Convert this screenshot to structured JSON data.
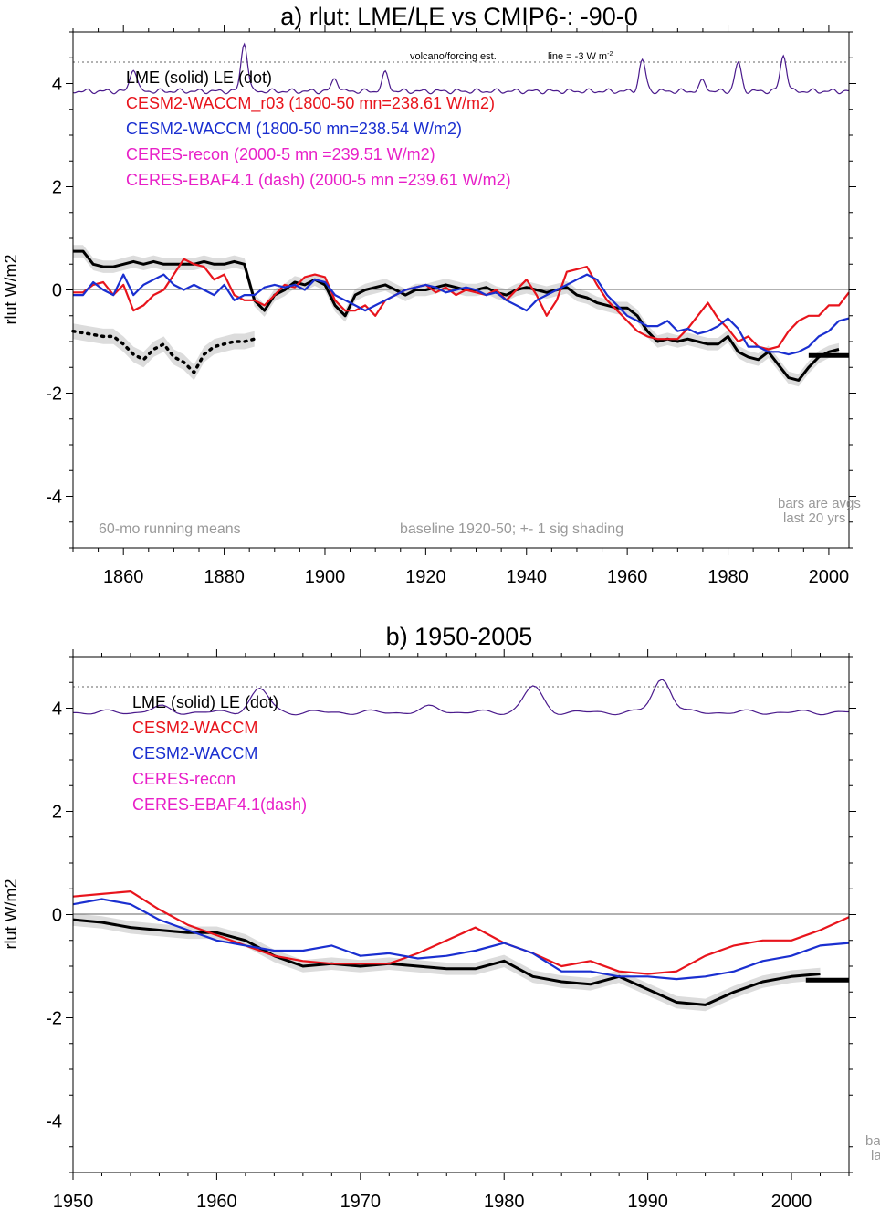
{
  "chart_data": [
    {
      "type": "line",
      "title": "a) rlut: LME/LE vs CMIP6-: -90-0",
      "ylabel": "rlut W/m2",
      "xlim": [
        1850,
        2004
      ],
      "ylim": [
        -5,
        5
      ],
      "xticks": [
        1860,
        1880,
        1900,
        1920,
        1940,
        1960,
        1980,
        2000
      ],
      "yticks": [
        4,
        2,
        0,
        -2,
        -4
      ],
      "legend": [
        {
          "text": "LME (solid)   LE (dot)",
          "color": "#000000"
        },
        {
          "text": "CESM2-WACCM_r03 (1800-50 mn=238.61 W/m2)",
          "color": "#e8141c"
        },
        {
          "text": "CESM2-WACCM (1800-50 mn=238.54 W/m2)",
          "color": "#1a2fd0"
        },
        {
          "text": "CERES-recon (2000-5 mn =239.51 W/m2)",
          "color": "#e820c8"
        },
        {
          "text": "CERES-EBAF4.1 (dash) (2000-5 mn =239.61 W/m2)",
          "color": "#e820c8"
        }
      ],
      "annotations": {
        "volcano": "volcano/forcing est.",
        "line_ref": "line = -3 W m",
        "line_ref_sup": "-2",
        "running": "60-mo running means",
        "baseline": "baseline 1920-50; +- 1 sig shading",
        "bars1": "bars are avgs",
        "bars2": "last 20 yrs"
      },
      "series": [
        {
          "name": "LME (solid)",
          "color": "#000000",
          "x": [
            1850,
            1852,
            1854,
            1856,
            1858,
            1860,
            1862,
            1864,
            1866,
            1868,
            1870,
            1872,
            1874,
            1876,
            1878,
            1880,
            1882,
            1884,
            1886,
            1888,
            1890,
            1892,
            1894,
            1896,
            1898,
            1900,
            1902,
            1904,
            1906,
            1908,
            1910,
            1912,
            1914,
            1916,
            1918,
            1920,
            1922,
            1924,
            1926,
            1928,
            1930,
            1932,
            1934,
            1936,
            1938,
            1940,
            1942,
            1944,
            1946,
            1948,
            1950,
            1952,
            1954,
            1956,
            1958,
            1960,
            1962,
            1964,
            1966,
            1968,
            1970,
            1972,
            1974,
            1976,
            1978,
            1980,
            1982,
            1984,
            1986,
            1988,
            1990,
            1992,
            1994,
            1996,
            1998,
            2000,
            2002
          ],
          "y": [
            0.75,
            0.75,
            0.5,
            0.45,
            0.45,
            0.5,
            0.55,
            0.5,
            0.55,
            0.5,
            0.5,
            0.5,
            0.5,
            0.55,
            0.5,
            0.5,
            0.55,
            0.5,
            -0.2,
            -0.4,
            -0.1,
            0.0,
            0.15,
            0.1,
            0.2,
            0.1,
            -0.3,
            -0.5,
            -0.1,
            0.0,
            0.05,
            0.1,
            0.0,
            -0.1,
            0.0,
            0.0,
            0.05,
            0.1,
            0.05,
            0.0,
            0.0,
            0.05,
            -0.05,
            -0.1,
            0.0,
            0.05,
            0.0,
            -0.05,
            0.0,
            0.05,
            -0.1,
            -0.15,
            -0.25,
            -0.3,
            -0.35,
            -0.35,
            -0.5,
            -0.8,
            -1.0,
            -0.95,
            -1.0,
            -0.95,
            -1.0,
            -1.05,
            -1.05,
            -0.9,
            -1.2,
            -1.3,
            -1.35,
            -1.2,
            -1.45,
            -1.7,
            -1.75,
            -1.5,
            -1.3,
            -1.2,
            -1.15
          ]
        },
        {
          "name": "LE (dot)",
          "color": "#000000",
          "dash": "dot",
          "x": [
            1850,
            1853,
            1856,
            1858,
            1860,
            1862,
            1864,
            1866,
            1868,
            1870,
            1872,
            1874,
            1876,
            1878,
            1880,
            1882,
            1884,
            1886
          ],
          "y": [
            -0.8,
            -0.85,
            -0.9,
            -0.9,
            -1.05,
            -1.25,
            -1.35,
            -1.15,
            -1.05,
            -1.3,
            -1.4,
            -1.6,
            -1.25,
            -1.1,
            -1.05,
            -1.0,
            -1.0,
            -0.95
          ]
        },
        {
          "name": "CESM2-WACCM_r03",
          "color": "#e8141c",
          "x": [
            1850,
            1852,
            1854,
            1856,
            1858,
            1860,
            1862,
            1864,
            1866,
            1868,
            1870,
            1872,
            1874,
            1876,
            1878,
            1880,
            1882,
            1884,
            1886,
            1888,
            1890,
            1892,
            1894,
            1896,
            1898,
            1900,
            1902,
            1904,
            1906,
            1908,
            1910,
            1912,
            1914,
            1916,
            1918,
            1920,
            1922,
            1924,
            1926,
            1928,
            1930,
            1932,
            1934,
            1936,
            1938,
            1940,
            1942,
            1944,
            1946,
            1948,
            1950,
            1952,
            1954,
            1956,
            1958,
            1960,
            1962,
            1964,
            1966,
            1968,
            1970,
            1972,
            1974,
            1976,
            1978,
            1980,
            1982,
            1984,
            1986,
            1988,
            1990,
            1992,
            1994,
            1996,
            1998,
            2000,
            2002,
            2004
          ],
          "y": [
            -0.05,
            -0.05,
            0.1,
            0.15,
            -0.1,
            0.1,
            -0.4,
            -0.3,
            -0.1,
            0.0,
            0.3,
            0.6,
            0.5,
            0.45,
            0.2,
            0.3,
            -0.1,
            -0.2,
            -0.2,
            -0.3,
            -0.1,
            0.1,
            0.05,
            0.25,
            0.3,
            0.25,
            -0.2,
            -0.4,
            -0.4,
            -0.3,
            -0.5,
            -0.2,
            -0.1,
            0.0,
            0.05,
            0.1,
            -0.05,
            0.05,
            -0.1,
            0.0,
            -0.05,
            -0.1,
            0.0,
            -0.2,
            0.0,
            0.2,
            -0.1,
            -0.5,
            -0.2,
            0.35,
            0.4,
            0.45,
            0.1,
            -0.2,
            -0.4,
            -0.6,
            -0.8,
            -0.9,
            -0.95,
            -0.95,
            -0.95,
            -0.75,
            -0.5,
            -0.25,
            -0.55,
            -0.75,
            -1.0,
            -0.9,
            -1.1,
            -1.15,
            -1.1,
            -0.8,
            -0.6,
            -0.5,
            -0.5,
            -0.3,
            -0.3,
            -0.05
          ]
        },
        {
          "name": "CESM2-WACCM",
          "color": "#1a2fd0",
          "x": [
            1850,
            1852,
            1854,
            1856,
            1858,
            1860,
            1862,
            1864,
            1866,
            1868,
            1870,
            1872,
            1874,
            1876,
            1878,
            1880,
            1882,
            1884,
            1886,
            1888,
            1890,
            1892,
            1894,
            1896,
            1898,
            1900,
            1902,
            1904,
            1906,
            1908,
            1910,
            1912,
            1914,
            1916,
            1918,
            1920,
            1922,
            1924,
            1926,
            1928,
            1930,
            1932,
            1934,
            1936,
            1938,
            1940,
            1942,
            1944,
            1946,
            1948,
            1950,
            1952,
            1954,
            1956,
            1958,
            1960,
            1962,
            1964,
            1966,
            1968,
            1970,
            1972,
            1974,
            1976,
            1978,
            1980,
            1982,
            1984,
            1986,
            1988,
            1990,
            1992,
            1994,
            1996,
            1998,
            2000,
            2002,
            2004
          ],
          "y": [
            -0.1,
            -0.1,
            0.15,
            0.0,
            -0.1,
            0.3,
            -0.1,
            0.1,
            0.2,
            0.3,
            0.1,
            0.0,
            0.1,
            0.0,
            -0.1,
            0.1,
            -0.2,
            -0.1,
            -0.1,
            0.05,
            0.1,
            0.05,
            0.1,
            0.0,
            0.2,
            0.15,
            -0.1,
            -0.2,
            -0.3,
            -0.4,
            -0.3,
            -0.2,
            -0.1,
            0.0,
            0.05,
            0.1,
            0.05,
            -0.05,
            0.0,
            0.05,
            0.0,
            -0.1,
            -0.05,
            -0.2,
            -0.3,
            -0.4,
            -0.2,
            -0.1,
            0.0,
            0.1,
            0.2,
            0.3,
            0.2,
            -0.1,
            -0.3,
            -0.5,
            -0.6,
            -0.7,
            -0.7,
            -0.6,
            -0.8,
            -0.75,
            -0.85,
            -0.8,
            -0.7,
            -0.55,
            -0.75,
            -1.1,
            -1.1,
            -1.2,
            -1.2,
            -1.25,
            -1.2,
            -1.1,
            -0.9,
            -0.8,
            -0.6,
            -0.55
          ]
        }
      ],
      "bar": {
        "x": [
          1996,
          2004
        ],
        "y": -1.27
      }
    },
    {
      "type": "line",
      "title": "b) 1950-2005",
      "ylabel": "rlut W/m2",
      "xlim": [
        1950,
        2004
      ],
      "ylim": [
        -5,
        5
      ],
      "xticks": [
        1950,
        1960,
        1970,
        1980,
        1990,
        2000
      ],
      "yticks": [
        4,
        2,
        0,
        -2,
        -4
      ],
      "legend": [
        {
          "text": "LME (solid)     LE (dot)",
          "color": "#000000"
        },
        {
          "text": "CESM2-WACCM",
          "color": "#e8141c"
        },
        {
          "text": "CESM2-WACCM",
          "color": "#1a2fd0"
        },
        {
          "text": "CERES-recon",
          "color": "#e820c8"
        },
        {
          "text": "CERES-EBAF4.1(dash)",
          "color": "#e820c8"
        }
      ],
      "annotations": {
        "bars1": "ba",
        "bars2": "la"
      },
      "series": [
        {
          "name": "LME (solid)",
          "color": "#000000",
          "x": [
            1950,
            1952,
            1954,
            1956,
            1958,
            1960,
            1962,
            1964,
            1966,
            1968,
            1970,
            1972,
            1974,
            1976,
            1978,
            1980,
            1982,
            1984,
            1986,
            1988,
            1990,
            1992,
            1994,
            1996,
            1998,
            2000,
            2002
          ],
          "y": [
            -0.1,
            -0.15,
            -0.25,
            -0.3,
            -0.35,
            -0.35,
            -0.5,
            -0.8,
            -1.0,
            -0.95,
            -1.0,
            -0.95,
            -1.0,
            -1.05,
            -1.05,
            -0.9,
            -1.2,
            -1.3,
            -1.35,
            -1.2,
            -1.45,
            -1.7,
            -1.75,
            -1.5,
            -1.3,
            -1.2,
            -1.15
          ]
        },
        {
          "name": "CESM2-WACCM red",
          "color": "#e8141c",
          "x": [
            1950,
            1952,
            1954,
            1956,
            1958,
            1960,
            1962,
            1964,
            1966,
            1968,
            1970,
            1972,
            1974,
            1976,
            1978,
            1980,
            1982,
            1984,
            1986,
            1988,
            1990,
            1992,
            1994,
            1996,
            1998,
            2000,
            2002,
            2004
          ],
          "y": [
            0.35,
            0.4,
            0.45,
            0.1,
            -0.2,
            -0.4,
            -0.6,
            -0.8,
            -0.9,
            -0.95,
            -0.95,
            -0.95,
            -0.75,
            -0.5,
            -0.25,
            -0.55,
            -0.75,
            -1.0,
            -0.9,
            -1.1,
            -1.15,
            -1.1,
            -0.8,
            -0.6,
            -0.5,
            -0.5,
            -0.3,
            -0.05
          ]
        },
        {
          "name": "CESM2-WACCM blue",
          "color": "#1a2fd0",
          "x": [
            1950,
            1952,
            1954,
            1956,
            1958,
            1960,
            1962,
            1964,
            1966,
            1968,
            1970,
            1972,
            1974,
            1976,
            1978,
            1980,
            1982,
            1984,
            1986,
            1988,
            1990,
            1992,
            1994,
            1996,
            1998,
            2000,
            2002,
            2004
          ],
          "y": [
            0.2,
            0.3,
            0.2,
            -0.1,
            -0.3,
            -0.5,
            -0.6,
            -0.7,
            -0.7,
            -0.6,
            -0.8,
            -0.75,
            -0.85,
            -0.8,
            -0.7,
            -0.55,
            -0.75,
            -1.1,
            -1.1,
            -1.2,
            -1.2,
            -1.25,
            -1.2,
            -1.1,
            -0.9,
            -0.8,
            -0.6,
            -0.55
          ]
        }
      ],
      "bar": {
        "x": [
          2001,
          2004
        ],
        "y": -1.27
      }
    }
  ]
}
